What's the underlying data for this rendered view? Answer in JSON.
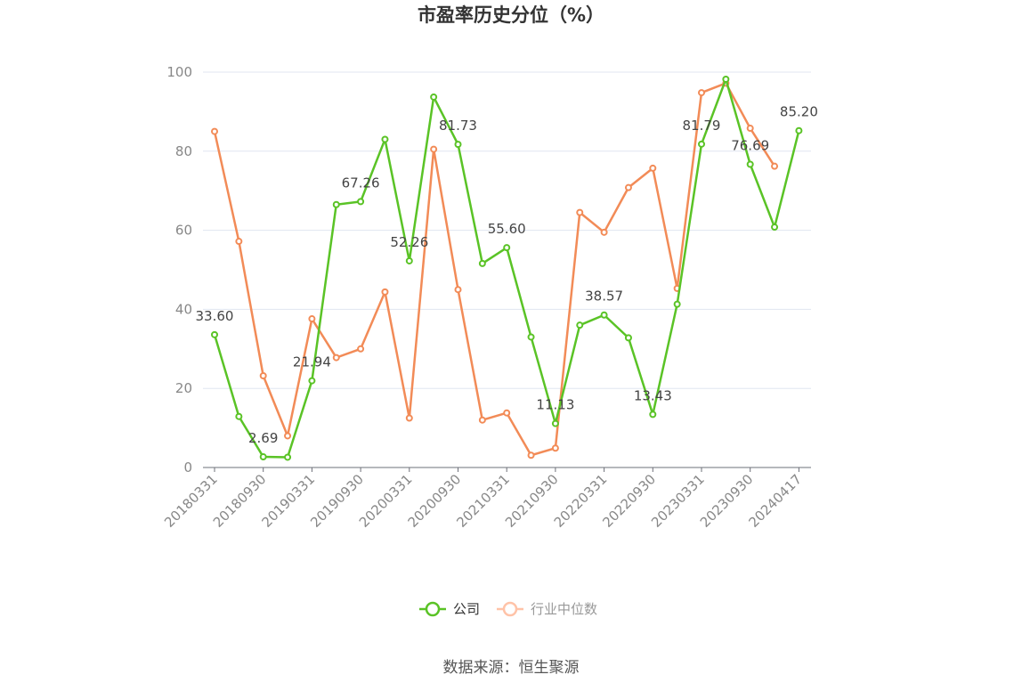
{
  "chart_data": {
    "type": "line",
    "title": "市盈率历史分位（%）",
    "source": "数据来源：恒生聚源",
    "xlabel": "",
    "ylabel": "",
    "ylim": [
      0,
      100
    ],
    "yticks": [
      0,
      20,
      40,
      60,
      80,
      100
    ],
    "grid": true,
    "legend_position": "bottom",
    "x_tick_labels": [
      "20180331",
      "20180930",
      "20190331",
      "20190930",
      "20200331",
      "20200930",
      "20210331",
      "20210930",
      "20220331",
      "20220930",
      "20230331",
      "20230930",
      "20240417"
    ],
    "series": [
      {
        "name": "公司",
        "color": "#5ac326",
        "values": [
          33.6,
          12.9,
          2.69,
          2.6,
          21.94,
          66.5,
          67.26,
          83.0,
          52.26,
          93.7,
          81.73,
          51.6,
          55.6,
          33.0,
          11.13,
          36.0,
          38.57,
          32.8,
          13.43,
          41.3,
          81.79,
          98.2,
          76.69,
          60.8,
          85.2
        ],
        "labels": {
          "0": "33.60",
          "2": "2.69",
          "4": "21.94",
          "6": "67.26",
          "8": "52.26",
          "10": "81.73",
          "12": "55.60",
          "14": "11.13",
          "16": "38.57",
          "18": "13.43",
          "20": "81.79",
          "22": "76.69",
          "24": "85.20"
        }
      },
      {
        "name": "行业中位数",
        "color": "#f28b57",
        "values": [
          85.0,
          57.2,
          23.2,
          8.0,
          37.6,
          27.8,
          30.0,
          44.4,
          12.5,
          80.5,
          45.0,
          12.0,
          13.8,
          3.1,
          4.9,
          64.5,
          59.5,
          70.8,
          75.7,
          45.3,
          94.8,
          97.2,
          85.8,
          76.2,
          null
        ]
      }
    ]
  },
  "colors": {
    "axis": "#6e7079",
    "grid": "#e0e6f1",
    "legend_inactive": "#ffc3a8",
    "legend_inactive_text": "#999999",
    "legend_active_text": "#333333"
  }
}
